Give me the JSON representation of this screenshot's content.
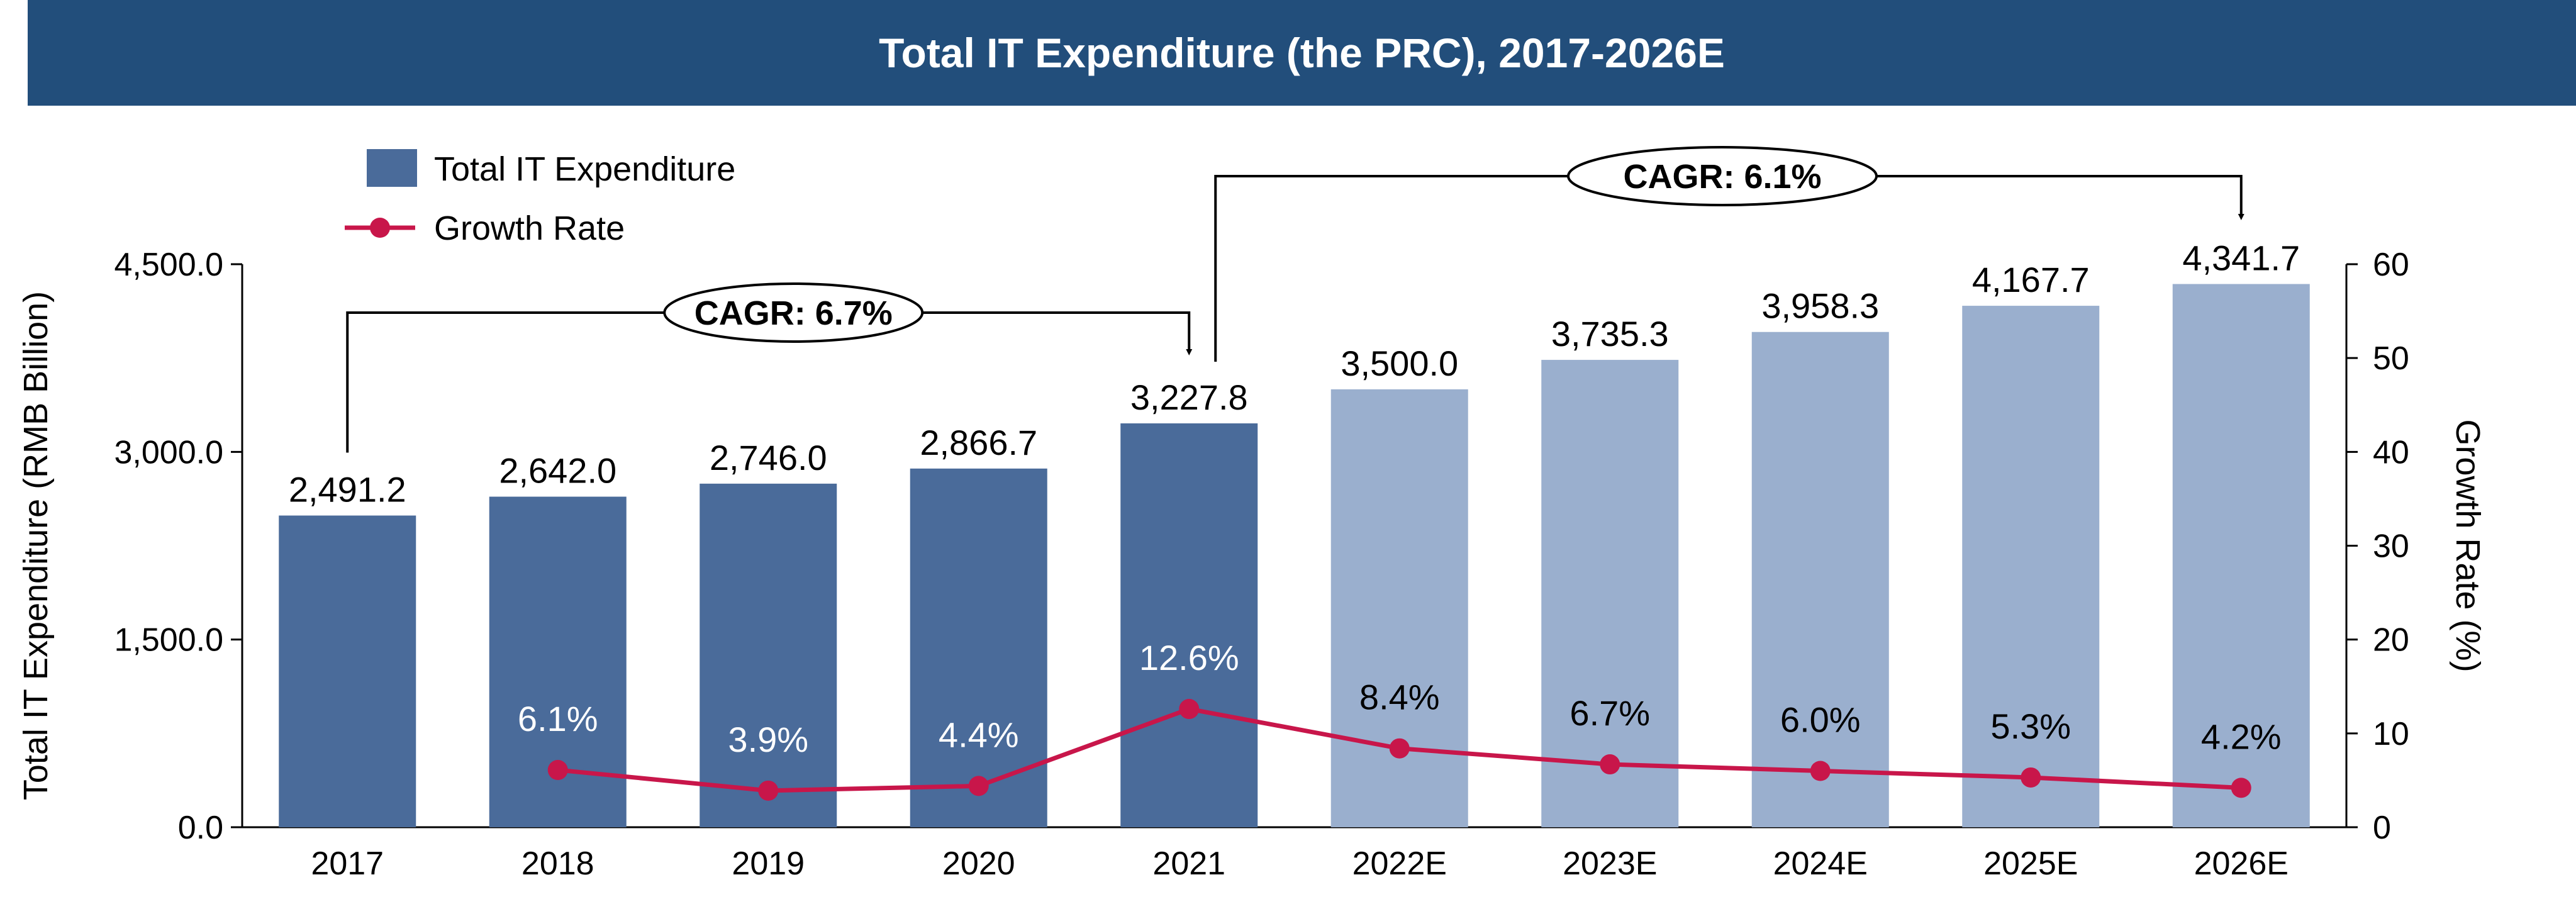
{
  "header": {
    "title": "Total IT Expenditure (the PRC), 2017-2026E"
  },
  "colors": {
    "title_bg": "#224e7b",
    "bar_actual": "#4a6b9a",
    "bar_forecast": "#9aafce",
    "line": "#c8164a"
  },
  "legend": {
    "bars": "Total IT Expenditure",
    "line": "Growth Rate"
  },
  "cagr": [
    {
      "label": "CAGR: 6.7%",
      "from": "2017",
      "to": "2021"
    },
    {
      "label": "CAGR: 6.1%",
      "from": "2021",
      "to": "2026E"
    }
  ],
  "chart_data": {
    "type": "bar",
    "title": "Total IT Expenditure (the PRC), 2017-2026E",
    "categories": [
      "2017",
      "2018",
      "2019",
      "2020",
      "2021",
      "2022E",
      "2023E",
      "2024E",
      "2025E",
      "2026E"
    ],
    "ylabel": "Total IT Expenditure (RMB Billion)",
    "y2label": "Growth Rate (%)",
    "ylim": [
      0,
      4500
    ],
    "y2lim": [
      0,
      60
    ],
    "yticks": [
      "0.0",
      "1,500.0",
      "3,000.0",
      "4,500.0"
    ],
    "y2ticks": [
      "0",
      "10",
      "20",
      "30",
      "40",
      "50",
      "60"
    ],
    "legend_position": "top-left",
    "series": [
      {
        "name": "Total IT Expenditure",
        "type": "bar",
        "values": [
          2491.2,
          2642.0,
          2746.0,
          2866.7,
          3227.8,
          3500.0,
          3735.3,
          3958.3,
          4167.7,
          4341.7
        ],
        "labels": [
          "2,491.2",
          "2,642.0",
          "2,746.0",
          "2,866.7",
          "3,227.8",
          "3,500.0",
          "3,735.3",
          "3,958.3",
          "4,167.7",
          "4,341.7"
        ]
      },
      {
        "name": "Growth Rate",
        "type": "line",
        "axis": "right",
        "values": [
          null,
          6.1,
          3.9,
          4.4,
          12.6,
          8.4,
          6.7,
          6.0,
          5.3,
          4.2
        ],
        "labels": [
          "",
          "6.1%",
          "3.9%",
          "4.4%",
          "12.6%",
          "8.4%",
          "6.7%",
          "6.0%",
          "5.3%",
          "4.2%"
        ]
      }
    ]
  }
}
